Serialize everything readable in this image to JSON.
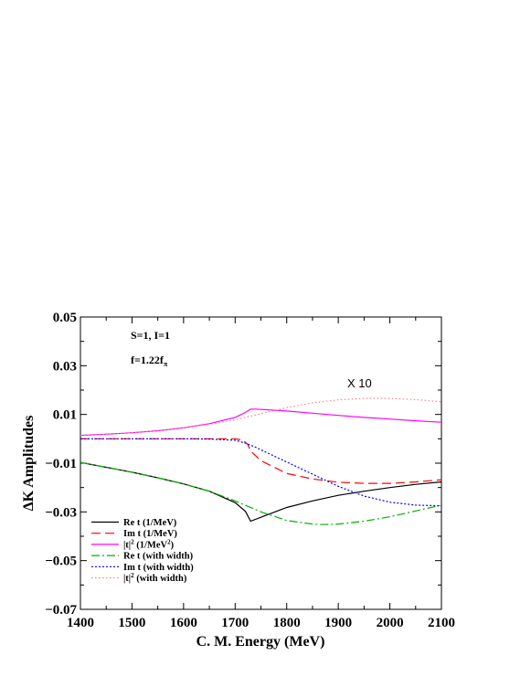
{
  "chart_data": {
    "type": "line",
    "xlabel": "C. M. Energy (MeV)",
    "ylabel": "ΔK Amplitudes",
    "xlim": [
      1400,
      2100
    ],
    "ylim": [
      -0.07,
      0.05
    ],
    "x_ticks": [
      1400,
      1500,
      1600,
      1700,
      1800,
      1900,
      2000,
      2100
    ],
    "x_tick_labels": [
      "1400",
      "1500",
      "1600",
      "1700",
      "1800",
      "1900",
      "2000",
      "2100"
    ],
    "y_ticks": [
      -0.07,
      -0.05,
      -0.03,
      -0.01,
      0.01,
      0.03,
      0.05
    ],
    "y_tick_labels": [
      "−0.07",
      "−0.05",
      "−0.03",
      "−0.01",
      "0.01",
      "0.03",
      "0.05"
    ],
    "grid": false,
    "legend_position": "bottom-left",
    "annotations": {
      "params_line1": "S=1, I=1",
      "params_line2_main": "f=1.22f",
      "params_line2_sub": "π",
      "scale_note": "X 10"
    },
    "series": [
      {
        "name": "Re t (1/MeV)",
        "legend_main": "Re t (1/MeV)",
        "legend_sup": "",
        "legend_tail": "",
        "color": "#000000",
        "dash": "",
        "x": [
          1400,
          1450,
          1500,
          1550,
          1600,
          1650,
          1700,
          1720,
          1730,
          1750,
          1800,
          1850,
          1900,
          1950,
          2000,
          2050,
          2100
        ],
        "y": [
          -0.0097,
          -0.0117,
          -0.0137,
          -0.016,
          -0.0185,
          -0.0215,
          -0.0262,
          -0.0298,
          -0.0338,
          -0.0322,
          -0.0282,
          -0.0255,
          -0.0232,
          -0.0215,
          -0.02,
          -0.0187,
          -0.0177
        ]
      },
      {
        "name": "Im t (1/MeV)",
        "legend_main": "Im t (1/MeV)",
        "legend_sup": "",
        "legend_tail": "",
        "color": "#ff0000",
        "dash": "10,5",
        "x": [
          1400,
          1500,
          1600,
          1700,
          1715,
          1725,
          1730,
          1750,
          1800,
          1850,
          1900,
          1950,
          2000,
          2050,
          2100
        ],
        "y": [
          0.0,
          0.0,
          0.0,
          0.0,
          -0.0005,
          -0.0025,
          -0.005,
          -0.009,
          -0.0142,
          -0.0165,
          -0.0178,
          -0.0183,
          -0.0183,
          -0.0177,
          -0.0168
        ]
      },
      {
        "name": "|t|^2 (1/MeV^2)",
        "legend_main": "|t|",
        "legend_sup": "2",
        "legend_tail": " (1/MeV",
        "legend_sup2": "2",
        "legend_tail2": ")",
        "color": "#ff00ff",
        "dash": "",
        "x": [
          1400,
          1450,
          1500,
          1550,
          1600,
          1650,
          1700,
          1720,
          1730,
          1740,
          1800,
          1850,
          1900,
          1950,
          2000,
          2050,
          2100
        ],
        "y": [
          0.0014,
          0.0019,
          0.0025,
          0.0033,
          0.0045,
          0.0062,
          0.0088,
          0.0108,
          0.0122,
          0.0122,
          0.0114,
          0.0105,
          0.0096,
          0.0088,
          0.0081,
          0.0074,
          0.0068
        ]
      },
      {
        "name": "Re t (with width)",
        "legend_main": "Re t (with width)",
        "legend_sup": "",
        "legend_tail": "",
        "color": "#00b000",
        "dash": "9,3,2,3",
        "x": [
          1400,
          1450,
          1500,
          1550,
          1600,
          1650,
          1700,
          1750,
          1800,
          1850,
          1870,
          1900,
          1950,
          2000,
          2050,
          2100
        ],
        "y": [
          -0.0097,
          -0.0117,
          -0.0137,
          -0.016,
          -0.0185,
          -0.0215,
          -0.0255,
          -0.03,
          -0.0335,
          -0.035,
          -0.0352,
          -0.035,
          -0.0338,
          -0.032,
          -0.0296,
          -0.0272
        ]
      },
      {
        "name": "Im t (with width)",
        "legend_main": "Im t (with width)",
        "legend_sup": "",
        "legend_tail": "",
        "color": "#0000ff",
        "dash": "2,2",
        "x": [
          1400,
          1500,
          1600,
          1650,
          1700,
          1720,
          1740,
          1760,
          1800,
          1850,
          1900,
          1950,
          2000,
          2050,
          2100
        ],
        "y": [
          0.0,
          0.0,
          0.0,
          -0.0001,
          -0.0006,
          -0.0018,
          -0.0035,
          -0.0055,
          -0.0095,
          -0.0145,
          -0.0195,
          -0.0235,
          -0.026,
          -0.0272,
          -0.0275
        ]
      },
      {
        "name": "|t|^2 (with width)",
        "legend_main": "|t|",
        "legend_sup": "2",
        "legend_tail": " (with width)",
        "color": "#ff8080",
        "dash": "1.5,2.5",
        "x": [
          1400,
          1450,
          1500,
          1550,
          1600,
          1650,
          1700,
          1750,
          1800,
          1850,
          1900,
          1950,
          2000,
          2050,
          2100
        ],
        "y": [
          0.0014,
          0.0019,
          0.0025,
          0.0033,
          0.0045,
          0.006,
          0.0078,
          0.0103,
          0.0128,
          0.0148,
          0.016,
          0.0166,
          0.0166,
          0.0161,
          0.0152
        ]
      }
    ]
  }
}
